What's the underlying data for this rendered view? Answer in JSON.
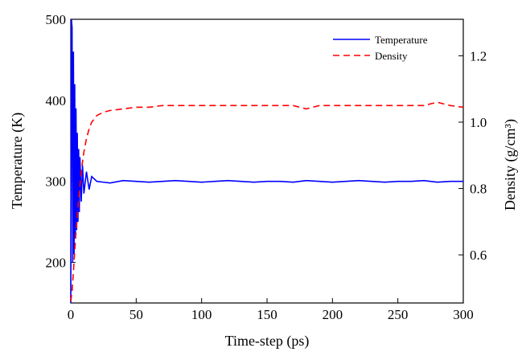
{
  "chart_data": {
    "type": "line",
    "x_label": "Time-step (ps)",
    "y_label_left": "Temperature (K)",
    "y_label_right": "Density (g/cm³)",
    "x_range": [
      0,
      300
    ],
    "y_left_range": [
      150,
      500
    ],
    "y_right_range": [
      0.455,
      1.31
    ],
    "x_ticks": [
      "0",
      "50",
      "100",
      "150",
      "200",
      "250",
      "300"
    ],
    "y_left_ticks": [
      "200",
      "300",
      "400",
      "500"
    ],
    "y_right_ticks": [
      "0.6",
      "0.8",
      "1.0",
      "1.2"
    ],
    "legend_position": "top-right",
    "series": [
      {
        "name": "Temperature",
        "axis": "left",
        "color": "#0000ff",
        "style": "solid",
        "x": [
          0,
          0.5,
          1,
          1.5,
          2,
          2.5,
          3,
          3.5,
          4,
          4.5,
          5,
          5.5,
          6,
          6.5,
          7,
          8,
          9,
          10,
          12,
          14,
          16,
          20,
          30,
          40,
          50,
          60,
          70,
          80,
          90,
          100,
          110,
          120,
          130,
          140,
          150,
          160,
          170,
          180,
          190,
          200,
          210,
          220,
          230,
          240,
          250,
          260,
          270,
          280,
          290,
          300
        ],
        "y": [
          150,
          500,
          490,
          200,
          460,
          210,
          420,
          230,
          390,
          240,
          360,
          250,
          340,
          262,
          330,
          275,
          320,
          285,
          312,
          290,
          306,
          300,
          298,
          301,
          300,
          299,
          300,
          301,
          300,
          299,
          300,
          301,
          300,
          299,
          300,
          300,
          299,
          301,
          300,
          299,
          300,
          301,
          300,
          299,
          300,
          300,
          301,
          299,
          300,
          300
        ]
      },
      {
        "name": "Density",
        "axis": "right",
        "color": "#ff0000",
        "style": "dashed",
        "x": [
          0,
          1,
          2,
          3,
          4,
          5,
          6,
          7,
          8,
          9,
          10,
          12,
          14,
          16,
          18,
          20,
          25,
          30,
          40,
          50,
          60,
          70,
          80,
          90,
          100,
          110,
          120,
          130,
          140,
          150,
          160,
          170,
          180,
          190,
          200,
          210,
          220,
          230,
          240,
          250,
          260,
          270,
          280,
          290,
          300
        ],
        "y": [
          0.46,
          0.49,
          0.55,
          0.61,
          0.67,
          0.72,
          0.77,
          0.81,
          0.85,
          0.88,
          0.91,
          0.95,
          0.98,
          1.0,
          1.01,
          1.02,
          1.03,
          1.035,
          1.04,
          1.045,
          1.045,
          1.05,
          1.05,
          1.05,
          1.05,
          1.05,
          1.05,
          1.05,
          1.05,
          1.05,
          1.05,
          1.05,
          1.04,
          1.05,
          1.05,
          1.05,
          1.05,
          1.05,
          1.05,
          1.05,
          1.05,
          1.05,
          1.06,
          1.05,
          1.045
        ]
      }
    ]
  }
}
